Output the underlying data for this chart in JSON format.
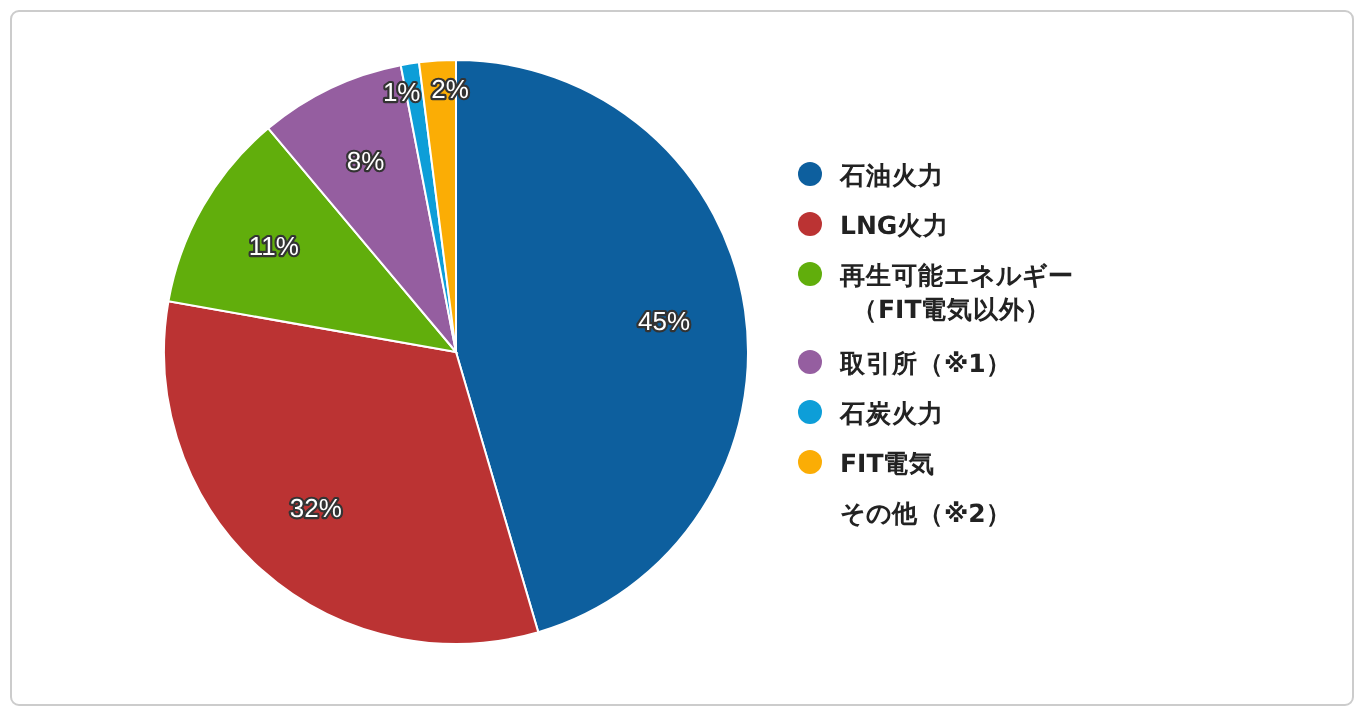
{
  "chart_data": {
    "type": "pie",
    "categories": [
      "石油火力",
      "LNG火力",
      "再生可能エネルギー（FIT電気以外）",
      "取引所（※1）",
      "石炭火力",
      "FIT電気",
      "その他（※2）"
    ],
    "values": [
      45,
      32,
      11,
      8,
      1,
      2,
      0
    ],
    "colors": [
      "#0d5f9e",
      "#bb3333",
      "#61ae0c",
      "#955ea0",
      "#0d9ed8",
      "#fbad05",
      "#ffffff"
    ],
    "value_labels": [
      "45%",
      "32%",
      "11%",
      "8%",
      "1%",
      "2%",
      null
    ],
    "legend": "right"
  }
}
